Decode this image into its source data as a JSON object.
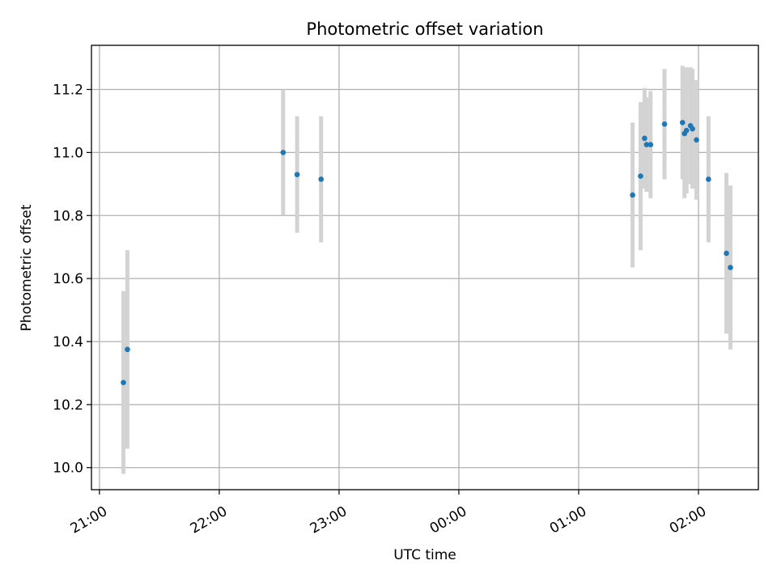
{
  "chart_data": {
    "type": "scatter",
    "title": "Photometric offset variation",
    "xlabel": "UTC time",
    "ylabel": "Photometric offset",
    "x_unit": "UTC time (HH:MM), spans midnight",
    "xlim": [
      "20:56",
      "02:30"
    ],
    "ylim": [
      9.93,
      11.34
    ],
    "x_ticks": [
      "21:00",
      "22:00",
      "23:00",
      "00:00",
      "01:00",
      "02:00"
    ],
    "y_ticks": [
      "10.0",
      "10.2",
      "10.4",
      "10.6",
      "10.8",
      "11.0",
      "11.2"
    ],
    "grid": true,
    "legend": "none",
    "colors": {
      "point": "#1f77b4",
      "errorbar": "#d3d3d3",
      "grid": "#b0b0b0"
    },
    "points": [
      {
        "x": "21:12",
        "y": 10.27,
        "err": 0.29
      },
      {
        "x": "21:14",
        "y": 10.375,
        "err": 0.315
      },
      {
        "x": "22:32",
        "y": 11.0,
        "err": 0.2
      },
      {
        "x": "22:39",
        "y": 10.93,
        "err": 0.185
      },
      {
        "x": "22:51",
        "y": 10.915,
        "err": 0.2
      },
      {
        "x": "01:27",
        "y": 10.865,
        "err": 0.23
      },
      {
        "x": "01:31",
        "y": 10.925,
        "err": 0.235
      },
      {
        "x": "01:33",
        "y": 11.045,
        "err": 0.16
      },
      {
        "x": "01:34",
        "y": 11.025,
        "err": 0.15
      },
      {
        "x": "01:36",
        "y": 11.025,
        "err": 0.17
      },
      {
        "x": "01:43",
        "y": 11.09,
        "err": 0.175
      },
      {
        "x": "01:52",
        "y": 11.095,
        "err": 0.18
      },
      {
        "x": "01:53",
        "y": 11.06,
        "err": 0.205
      },
      {
        "x": "01:54",
        "y": 11.07,
        "err": 0.2
      },
      {
        "x": "01:56",
        "y": 11.085,
        "err": 0.185
      },
      {
        "x": "01:57",
        "y": 11.075,
        "err": 0.19
      },
      {
        "x": "01:59",
        "y": 11.04,
        "err": 0.19
      },
      {
        "x": "02:05",
        "y": 10.915,
        "err": 0.2
      },
      {
        "x": "02:14",
        "y": 10.68,
        "err": 0.255
      },
      {
        "x": "02:16",
        "y": 10.635,
        "err": 0.26
      }
    ]
  }
}
